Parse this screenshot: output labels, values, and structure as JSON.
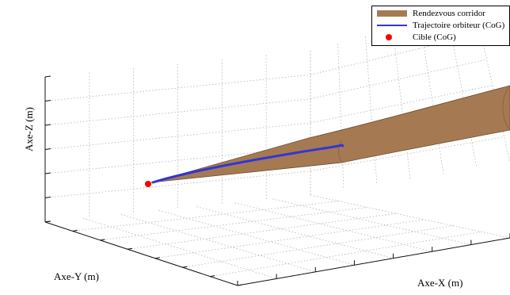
{
  "chart_data": {
    "type": "3d-line-surface",
    "title": "",
    "xlabel": "Axe-X (m)",
    "ylabel": "Axe-Y (m)",
    "zlabel": "Axe-Z (m)",
    "grid": true,
    "legend_placement": "top-right",
    "series": [
      {
        "name": "Rendezvous corridor",
        "kind": "surface",
        "color": "#a57a52"
      },
      {
        "name": "Trajectoire orbiteur (CoG)",
        "kind": "line",
        "color": "#3136d8"
      },
      {
        "name": "Cible (CoG)",
        "kind": "point",
        "color": "#ff0000"
      }
    ]
  }
}
